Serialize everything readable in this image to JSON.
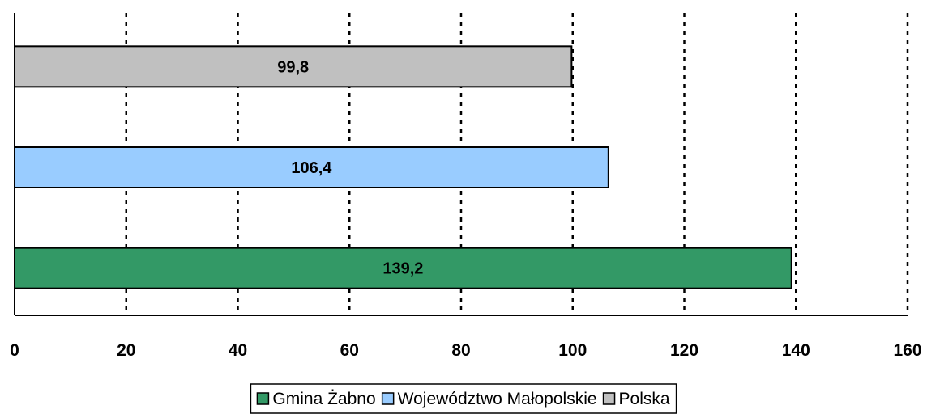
{
  "chart_data": {
    "type": "bar",
    "orientation": "horizontal",
    "categories": [
      "Gmina Żabno",
      "Województwo Małopolskie",
      "Polska"
    ],
    "values": [
      139.2,
      106.4,
      99.8
    ],
    "value_labels": [
      "139,2",
      "106,4",
      "99,8"
    ],
    "colors": [
      "#339966",
      "#99CCFF",
      "#C0C0C0"
    ],
    "xlim": [
      0,
      160
    ],
    "xticks": [
      0,
      20,
      40,
      60,
      80,
      100,
      120,
      140,
      160
    ],
    "xtick_labels": [
      "0",
      "20",
      "40",
      "60",
      "80",
      "100",
      "120",
      "140",
      "160"
    ],
    "grid": "vertical dotted",
    "legend_position": "bottom",
    "legend": [
      "Gmina Żabno",
      "Województwo Małopolskie",
      "Polska"
    ],
    "title": "",
    "xlabel": "",
    "ylabel": ""
  }
}
